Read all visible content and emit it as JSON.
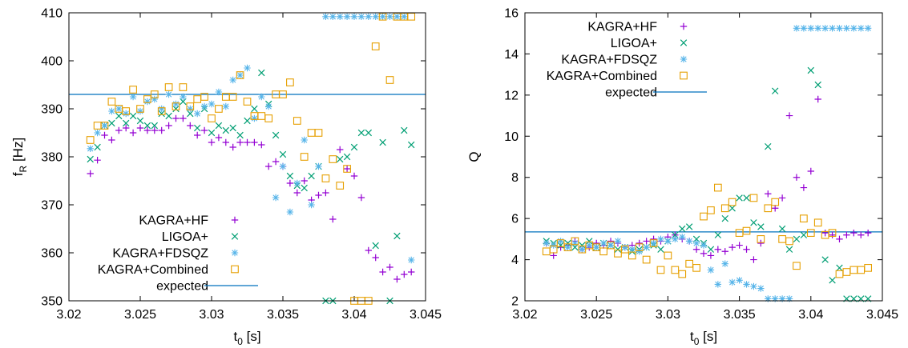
{
  "chart_data": [
    {
      "type": "scatter",
      "xlabel": "t",
      "xlabel_sub": "0",
      "xlabel_unit": " [s]",
      "ylabel": "f",
      "ylabel_sub": "R",
      "ylabel_unit": " [Hz]",
      "xlim": [
        3.02,
        3.045
      ],
      "ylim": [
        350,
        410
      ],
      "xticks": [
        3.02,
        3.025,
        3.03,
        3.035,
        3.04,
        3.045
      ],
      "xtick_labels": [
        "3.02",
        "3.025",
        "3.03",
        "3.035",
        "3.04",
        "3.045"
      ],
      "yticks": [
        350,
        360,
        370,
        380,
        390,
        400,
        410
      ],
      "ytick_labels": [
        "350",
        "360",
        "370",
        "380",
        "390",
        "400",
        "410"
      ],
      "legend_position": "bottom-left",
      "expected": {
        "name": "expected",
        "value": 393,
        "color": "#0072bd"
      },
      "series": [
        {
          "name": "KAGRA+HF",
          "marker": "plus",
          "color": "#9400d3",
          "x": [
            3.0215,
            3.022,
            3.0225,
            3.023,
            3.0235,
            3.024,
            3.0245,
            3.025,
            3.0255,
            3.026,
            3.0265,
            3.027,
            3.0275,
            3.028,
            3.0285,
            3.029,
            3.0295,
            3.03,
            3.0305,
            3.031,
            3.0315,
            3.032,
            3.0325,
            3.033,
            3.0335,
            3.034,
            3.0345,
            3.035,
            3.0355,
            3.036,
            3.0365,
            3.037,
            3.0375,
            3.038,
            3.0385,
            3.039,
            3.0395,
            3.04,
            3.0405,
            3.041,
            3.0415,
            3.042,
            3.0425,
            3.043,
            3.0435,
            3.044
          ],
          "y": [
            376.5,
            379.3,
            384.5,
            383.5,
            385.5,
            386,
            385,
            386,
            385.5,
            385.5,
            385.5,
            386.5,
            388,
            388,
            386.5,
            384.5,
            385.5,
            383,
            384,
            383,
            382,
            383,
            383,
            383,
            382.5,
            378,
            379,
            378,
            374.5,
            372.5,
            375,
            371,
            372,
            372.5,
            367,
            381.5,
            377.5,
            376,
            371.5,
            360.5,
            359,
            356,
            357,
            354.5,
            355.5,
            356
          ]
        },
        {
          "name": "LIGOA+",
          "marker": "cross",
          "color": "#009e73",
          "x": [
            3.0215,
            3.022,
            3.0225,
            3.023,
            3.0235,
            3.024,
            3.0245,
            3.025,
            3.0255,
            3.026,
            3.0265,
            3.027,
            3.0275,
            3.028,
            3.0285,
            3.029,
            3.0295,
            3.03,
            3.0305,
            3.031,
            3.0315,
            3.032,
            3.0325,
            3.033,
            3.0335,
            3.034,
            3.0345,
            3.035,
            3.0355,
            3.036,
            3.0365,
            3.037,
            3.0375,
            3.038,
            3.0385,
            3.039,
            3.0395,
            3.04,
            3.0405,
            3.041,
            3.0415,
            3.042,
            3.0425,
            3.043,
            3.0435,
            3.044
          ],
          "y": [
            379.5,
            382,
            386.5,
            387,
            388.5,
            387,
            388.5,
            387.5,
            386.5,
            386.5,
            389,
            388.5,
            390,
            391.5,
            389,
            386,
            390,
            385,
            386.5,
            385.5,
            386,
            384.5,
            387.5,
            390,
            397.5,
            391,
            384.5,
            380.5,
            376,
            374,
            373.5,
            376,
            378,
            350,
            350,
            379.5,
            380,
            382,
            385,
            385,
            361.5,
            383,
            350,
            363.5,
            385.5,
            382.5
          ]
        },
        {
          "name": "KAGRA+FDSQZ",
          "marker": "star",
          "color": "#56b4e9",
          "x": [
            3.0215,
            3.022,
            3.0225,
            3.023,
            3.0235,
            3.024,
            3.0245,
            3.025,
            3.0255,
            3.026,
            3.0265,
            3.027,
            3.0275,
            3.028,
            3.0285,
            3.029,
            3.0295,
            3.03,
            3.0305,
            3.031,
            3.0315,
            3.032,
            3.0325,
            3.033,
            3.0335,
            3.034,
            3.0345,
            3.035,
            3.0355,
            3.036,
            3.0365,
            3.037,
            3.0375,
            3.038,
            3.0385,
            3.039,
            3.0395,
            3.04,
            3.0405,
            3.041,
            3.0415,
            3.042,
            3.0425,
            3.043,
            3.0435,
            3.044
          ],
          "y": [
            381.7,
            385,
            386.5,
            389.5,
            390,
            389,
            392.5,
            389.5,
            391.5,
            392,
            390,
            393,
            391,
            392.5,
            390,
            389,
            390.5,
            391,
            393.5,
            390.5,
            396,
            397,
            398.5,
            388,
            392.5,
            390.5,
            371.5,
            378,
            368.5,
            374.5,
            383.5,
            370,
            378,
            409.2,
            409.2,
            409.2,
            409.2,
            409.2,
            409.2,
            409.2,
            409.2,
            409.2,
            409.2,
            409.2,
            409.2,
            358.5
          ]
        },
        {
          "name": "KAGRA+Combined",
          "marker": "square",
          "color": "#e69f00",
          "x": [
            3.0215,
            3.022,
            3.0225,
            3.023,
            3.0235,
            3.024,
            3.0245,
            3.025,
            3.0255,
            3.026,
            3.0265,
            3.027,
            3.0275,
            3.028,
            3.0285,
            3.029,
            3.0295,
            3.03,
            3.0305,
            3.031,
            3.0315,
            3.032,
            3.0325,
            3.033,
            3.0335,
            3.034,
            3.0345,
            3.035,
            3.0355,
            3.036,
            3.0365,
            3.037,
            3.0375,
            3.038,
            3.0385,
            3.039,
            3.0395,
            3.04,
            3.0405,
            3.041,
            3.0415,
            3.042,
            3.0425,
            3.043,
            3.0435,
            3.044
          ],
          "y": [
            383.5,
            386.5,
            386.5,
            391.5,
            390,
            389.5,
            394,
            390,
            392,
            393,
            389.5,
            394.5,
            390.5,
            394.5,
            390.5,
            392,
            392.5,
            388,
            390,
            392.5,
            392.5,
            397,
            391.5,
            388.5,
            388.5,
            388,
            393,
            393,
            395.5,
            387.5,
            380,
            385,
            385,
            375.5,
            379.5,
            374,
            377.5,
            350,
            350,
            350,
            403,
            409.2,
            396,
            409.2,
            409.2,
            409.2
          ]
        }
      ]
    },
    {
      "type": "scatter",
      "xlabel": "t",
      "xlabel_sub": "0",
      "xlabel_unit": " [s]",
      "ylabel": "Q",
      "xlim": [
        3.02,
        3.045
      ],
      "ylim": [
        2,
        16
      ],
      "xticks": [
        3.02,
        3.025,
        3.03,
        3.035,
        3.04,
        3.045
      ],
      "xtick_labels": [
        "3.02",
        "3.025",
        "3.03",
        "3.035",
        "3.04",
        "3.045"
      ],
      "yticks": [
        2,
        4,
        6,
        8,
        10,
        12,
        14,
        16
      ],
      "ytick_labels": [
        "2",
        "4",
        "6",
        "8",
        "10",
        "12",
        "14",
        "16"
      ],
      "legend_position": "top-left",
      "expected": {
        "name": "expected",
        "value": 5.35,
        "color": "#0072bd"
      },
      "series": [
        {
          "name": "KAGRA+HF",
          "marker": "plus",
          "color": "#9400d3",
          "x": [
            3.0215,
            3.022,
            3.0225,
            3.023,
            3.0235,
            3.024,
            3.0245,
            3.025,
            3.0255,
            3.026,
            3.0265,
            3.027,
            3.0275,
            3.028,
            3.0285,
            3.029,
            3.0295,
            3.03,
            3.0305,
            3.031,
            3.0315,
            3.032,
            3.0325,
            3.033,
            3.0335,
            3.034,
            3.0345,
            3.035,
            3.0355,
            3.036,
            3.0365,
            3.037,
            3.0375,
            3.038,
            3.0385,
            3.039,
            3.0395,
            3.04,
            3.0405,
            3.041,
            3.0415,
            3.042,
            3.0425,
            3.043,
            3.0435,
            3.044
          ],
          "y": [
            4.8,
            4.2,
            4.6,
            4.7,
            4.9,
            4.5,
            4.6,
            4.8,
            4.7,
            4.9,
            4.8,
            4.6,
            4.7,
            4.8,
            4.9,
            5.0,
            4.9,
            5.1,
            5.2,
            5.0,
            4.9,
            4.5,
            4.3,
            4.2,
            4.5,
            4.4,
            4.6,
            4.7,
            4.5,
            4.0,
            4.8,
            7.2,
            6.5,
            7.0,
            11.0,
            8.0,
            7.5,
            8.3,
            11.8,
            5.3,
            5.2,
            5.0,
            5.2,
            5.3,
            5.2,
            5.3
          ]
        },
        {
          "name": "LIGOA+",
          "marker": "cross",
          "color": "#009e73",
          "x": [
            3.0215,
            3.022,
            3.0225,
            3.023,
            3.0235,
            3.024,
            3.0245,
            3.025,
            3.0255,
            3.026,
            3.0265,
            3.027,
            3.0275,
            3.028,
            3.0285,
            3.029,
            3.0295,
            3.03,
            3.0305,
            3.031,
            3.0315,
            3.032,
            3.0325,
            3.033,
            3.0335,
            3.034,
            3.0345,
            3.035,
            3.0355,
            3.036,
            3.0365,
            3.037,
            3.0375,
            3.038,
            3.0385,
            3.039,
            3.0395,
            3.04,
            3.0405,
            3.041,
            3.0415,
            3.042,
            3.0425,
            3.043,
            3.0435,
            3.044
          ],
          "y": [
            4.9,
            4.8,
            4.7,
            4.8,
            4.6,
            4.7,
            4.9,
            4.6,
            4.8,
            4.7,
            4.5,
            4.6,
            4.4,
            4.5,
            4.6,
            4.7,
            4.5,
            4.9,
            5.2,
            5.5,
            5.6,
            5.0,
            4.8,
            4.5,
            5.2,
            6.0,
            6.5,
            7.0,
            7.0,
            5.8,
            5.6,
            9.5,
            12.2,
            5.5,
            4.5,
            5.0,
            5.2,
            13.2,
            12.5,
            4.0,
            3.0,
            3.6,
            2.1,
            2.1,
            2.1,
            2.1
          ]
        },
        {
          "name": "KAGRA+FDSQZ",
          "marker": "star",
          "color": "#56b4e9",
          "x": [
            3.0215,
            3.022,
            3.0225,
            3.023,
            3.0235,
            3.024,
            3.0245,
            3.025,
            3.0255,
            3.026,
            3.0265,
            3.027,
            3.0275,
            3.028,
            3.0285,
            3.029,
            3.0295,
            3.03,
            3.0305,
            3.031,
            3.0315,
            3.032,
            3.0325,
            3.033,
            3.0335,
            3.034,
            3.0345,
            3.035,
            3.0355,
            3.036,
            3.0365,
            3.037,
            3.0375,
            3.038,
            3.0385,
            3.039,
            3.0395,
            3.04,
            3.0405,
            3.041,
            3.0415,
            3.042,
            3.0425,
            3.043,
            3.0435,
            3.044
          ],
          "y": [
            4.8,
            4.7,
            4.9,
            4.6,
            4.8,
            4.5,
            4.7,
            4.6,
            4.8,
            4.7,
            4.9,
            4.6,
            4.5,
            4.4,
            4.6,
            4.8,
            5.0,
            4.9,
            5.0,
            5.1,
            4.9,
            4.8,
            4.7,
            3.5,
            2.8,
            3.8,
            2.9,
            3.0,
            2.8,
            2.7,
            2.6,
            2.1,
            2.1,
            2.1,
            2.1,
            15.25,
            15.25,
            15.25,
            15.25,
            15.25,
            15.25,
            15.25,
            15.25,
            15.25,
            15.25,
            15.25
          ]
        },
        {
          "name": "KAGRA+Combined",
          "marker": "square",
          "color": "#e69f00",
          "x": [
            3.0215,
            3.022,
            3.0225,
            3.023,
            3.0235,
            3.024,
            3.0245,
            3.025,
            3.0255,
            3.026,
            3.0265,
            3.027,
            3.0275,
            3.028,
            3.0285,
            3.029,
            3.0295,
            3.03,
            3.0305,
            3.031,
            3.0315,
            3.032,
            3.0325,
            3.033,
            3.0335,
            3.034,
            3.0345,
            3.035,
            3.0355,
            3.036,
            3.0365,
            3.037,
            3.0375,
            3.038,
            3.0385,
            3.039,
            3.0395,
            3.04,
            3.0405,
            3.041,
            3.0415,
            3.042,
            3.0425,
            3.043,
            3.0435,
            3.044
          ],
          "y": [
            4.4,
            4.5,
            4.8,
            4.6,
            4.9,
            4.5,
            4.7,
            4.6,
            4.4,
            4.7,
            4.3,
            4.5,
            4.2,
            4.6,
            4.0,
            4.8,
            3.5,
            4.2,
            3.5,
            3.3,
            3.8,
            3.6,
            6.1,
            6.4,
            7.5,
            6.5,
            6.8,
            5.3,
            5.4,
            7.0,
            5.0,
            6.5,
            6.8,
            5.0,
            4.9,
            3.7,
            6.0,
            5.3,
            5.8,
            5.2,
            5.3,
            3.3,
            3.4,
            3.5,
            3.5,
            3.6
          ]
        }
      ]
    }
  ]
}
